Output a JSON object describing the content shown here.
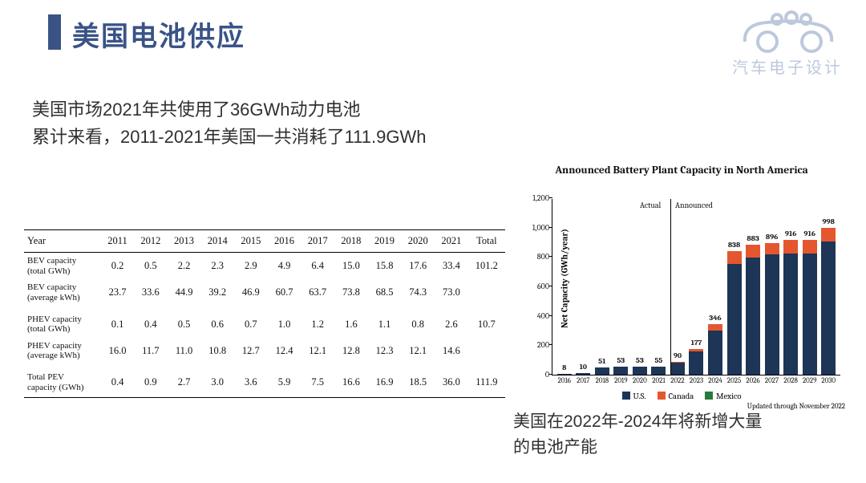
{
  "title": "美国电池供应",
  "logo_text": "汽车电子设计",
  "subhead_line1": "美国市场2021年共使用了36GWh动力电池",
  "subhead_line2": "累计来看，2011-2021年美国一共消耗了111.9GWh",
  "table": {
    "header_year": "Year",
    "years": [
      "2011",
      "2012",
      "2013",
      "2014",
      "2015",
      "2016",
      "2017",
      "2018",
      "2019",
      "2020",
      "2021"
    ],
    "total_label": "Total",
    "rows": [
      {
        "label": "BEV capacity\n(total GWh)",
        "vals": [
          "0.2",
          "0.5",
          "2.2",
          "2.3",
          "2.9",
          "4.9",
          "6.4",
          "15.0",
          "15.8",
          "17.6",
          "33.4"
        ],
        "total": "101.2"
      },
      {
        "label": "BEV capacity\n(average kWh)",
        "vals": [
          "23.7",
          "33.6",
          "44.9",
          "39.2",
          "46.9",
          "60.7",
          "63.7",
          "73.8",
          "68.5",
          "74.3",
          "73.0"
        ],
        "total": ""
      },
      {
        "label": "PHEV capacity\n(total GWh)",
        "vals": [
          "0.1",
          "0.4",
          "0.5",
          "0.6",
          "0.7",
          "1.0",
          "1.2",
          "1.6",
          "1.1",
          "0.8",
          "2.6"
        ],
        "total": "10.7"
      },
      {
        "label": "PHEV capacity\n(average kWh)",
        "vals": [
          "16.0",
          "11.7",
          "11.0",
          "10.8",
          "12.7",
          "12.4",
          "12.1",
          "12.8",
          "12.3",
          "12.1",
          "14.6"
        ],
        "total": ""
      },
      {
        "label": "Total PEV\ncapacity (GWh)",
        "vals": [
          "0.4",
          "0.9",
          "2.7",
          "3.0",
          "3.6",
          "5.9",
          "7.5",
          "16.6",
          "16.9",
          "18.5",
          "36.0"
        ],
        "total": "111.9"
      }
    ]
  },
  "chart": {
    "title": "Announced Battery Plant Capacity in North America",
    "ylabel": "Net Capacity (GWh/year)",
    "ymax": 1200,
    "yticks": [
      0,
      200,
      400,
      600,
      800,
      1000,
      1200
    ],
    "categories": [
      "2016",
      "2017",
      "2018",
      "2019",
      "2020",
      "2021",
      "2022",
      "2023",
      "2024",
      "2025",
      "2026",
      "2027",
      "2028",
      "2029",
      "2030"
    ],
    "labels": [
      "8",
      "10",
      "51",
      "53",
      "53",
      "55",
      "90",
      "177",
      "346",
      "838",
      "883",
      "896",
      "916",
      "916",
      "998"
    ],
    "us": [
      8,
      10,
      51,
      53,
      53,
      55,
      80,
      160,
      300,
      755,
      795,
      820,
      825,
      825,
      905
    ],
    "canada": [
      0,
      0,
      0,
      0,
      0,
      0,
      10,
      17,
      46,
      83,
      88,
      76,
      91,
      91,
      93
    ],
    "mexico": [
      0,
      0,
      0,
      0,
      0,
      0,
      0,
      0,
      0,
      0,
      0,
      0,
      0,
      0,
      0
    ],
    "divider_after_index": 5,
    "divider_left_label": "Actual",
    "divider_right_label": "Announced",
    "legend": {
      "us": "U.S.",
      "ca": "Canada",
      "mx": "Mexico"
    },
    "note": "Updated through November 2022",
    "colors": {
      "us": "#1d3557",
      "ca": "#e4572e",
      "mx": "#2a7a3f"
    }
  },
  "caption_line1": "美国在2022年-2024年将新增大量",
  "caption_line2": "的电池产能"
}
